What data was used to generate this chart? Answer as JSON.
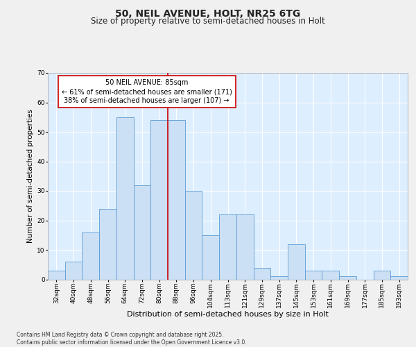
{
  "title": "50, NEIL AVENUE, HOLT, NR25 6TG",
  "subtitle": "Size of property relative to semi-detached houses in Holt",
  "xlabel": "Distribution of semi-detached houses by size in Holt",
  "ylabel": "Number of semi-detached properties",
  "categories": [
    "32sqm",
    "40sqm",
    "48sqm",
    "56sqm",
    "64sqm",
    "72sqm",
    "80sqm",
    "88sqm",
    "96sqm",
    "104sqm",
    "113sqm",
    "121sqm",
    "129sqm",
    "137sqm",
    "145sqm",
    "153sqm",
    "161sqm",
    "169sqm",
    "177sqm",
    "185sqm",
    "193sqm"
  ],
  "values": [
    3,
    6,
    16,
    24,
    55,
    32,
    54,
    54,
    30,
    15,
    22,
    22,
    4,
    1,
    12,
    3,
    3,
    1,
    0,
    3,
    1
  ],
  "bar_color": "#cce0f5",
  "bar_edge_color": "#5b9bd5",
  "background_color": "#ddeeff",
  "fig_background_color": "#f0f0f0",
  "grid_color": "#ffffff",
  "vline_x": 6.5,
  "vline_color": "#cc0000",
  "annotation_title": "50 NEIL AVENUE: 85sqm",
  "annotation_line1": "← 61% of semi-detached houses are smaller (171)",
  "annotation_line2": "38% of semi-detached houses are larger (107) →",
  "annotation_box_color": "#ffffff",
  "annotation_box_edge": "#cc0000",
  "footer_line1": "Contains HM Land Registry data © Crown copyright and database right 2025.",
  "footer_line2": "Contains public sector information licensed under the Open Government Licence v3.0.",
  "ylim": [
    0,
    70
  ],
  "yticks": [
    0,
    10,
    20,
    30,
    40,
    50,
    60,
    70
  ],
  "title_fontsize": 10,
  "subtitle_fontsize": 8.5,
  "ylabel_fontsize": 7.5,
  "xlabel_fontsize": 8,
  "tick_fontsize": 6.5,
  "annotation_fontsize": 7,
  "footer_fontsize": 5.5
}
